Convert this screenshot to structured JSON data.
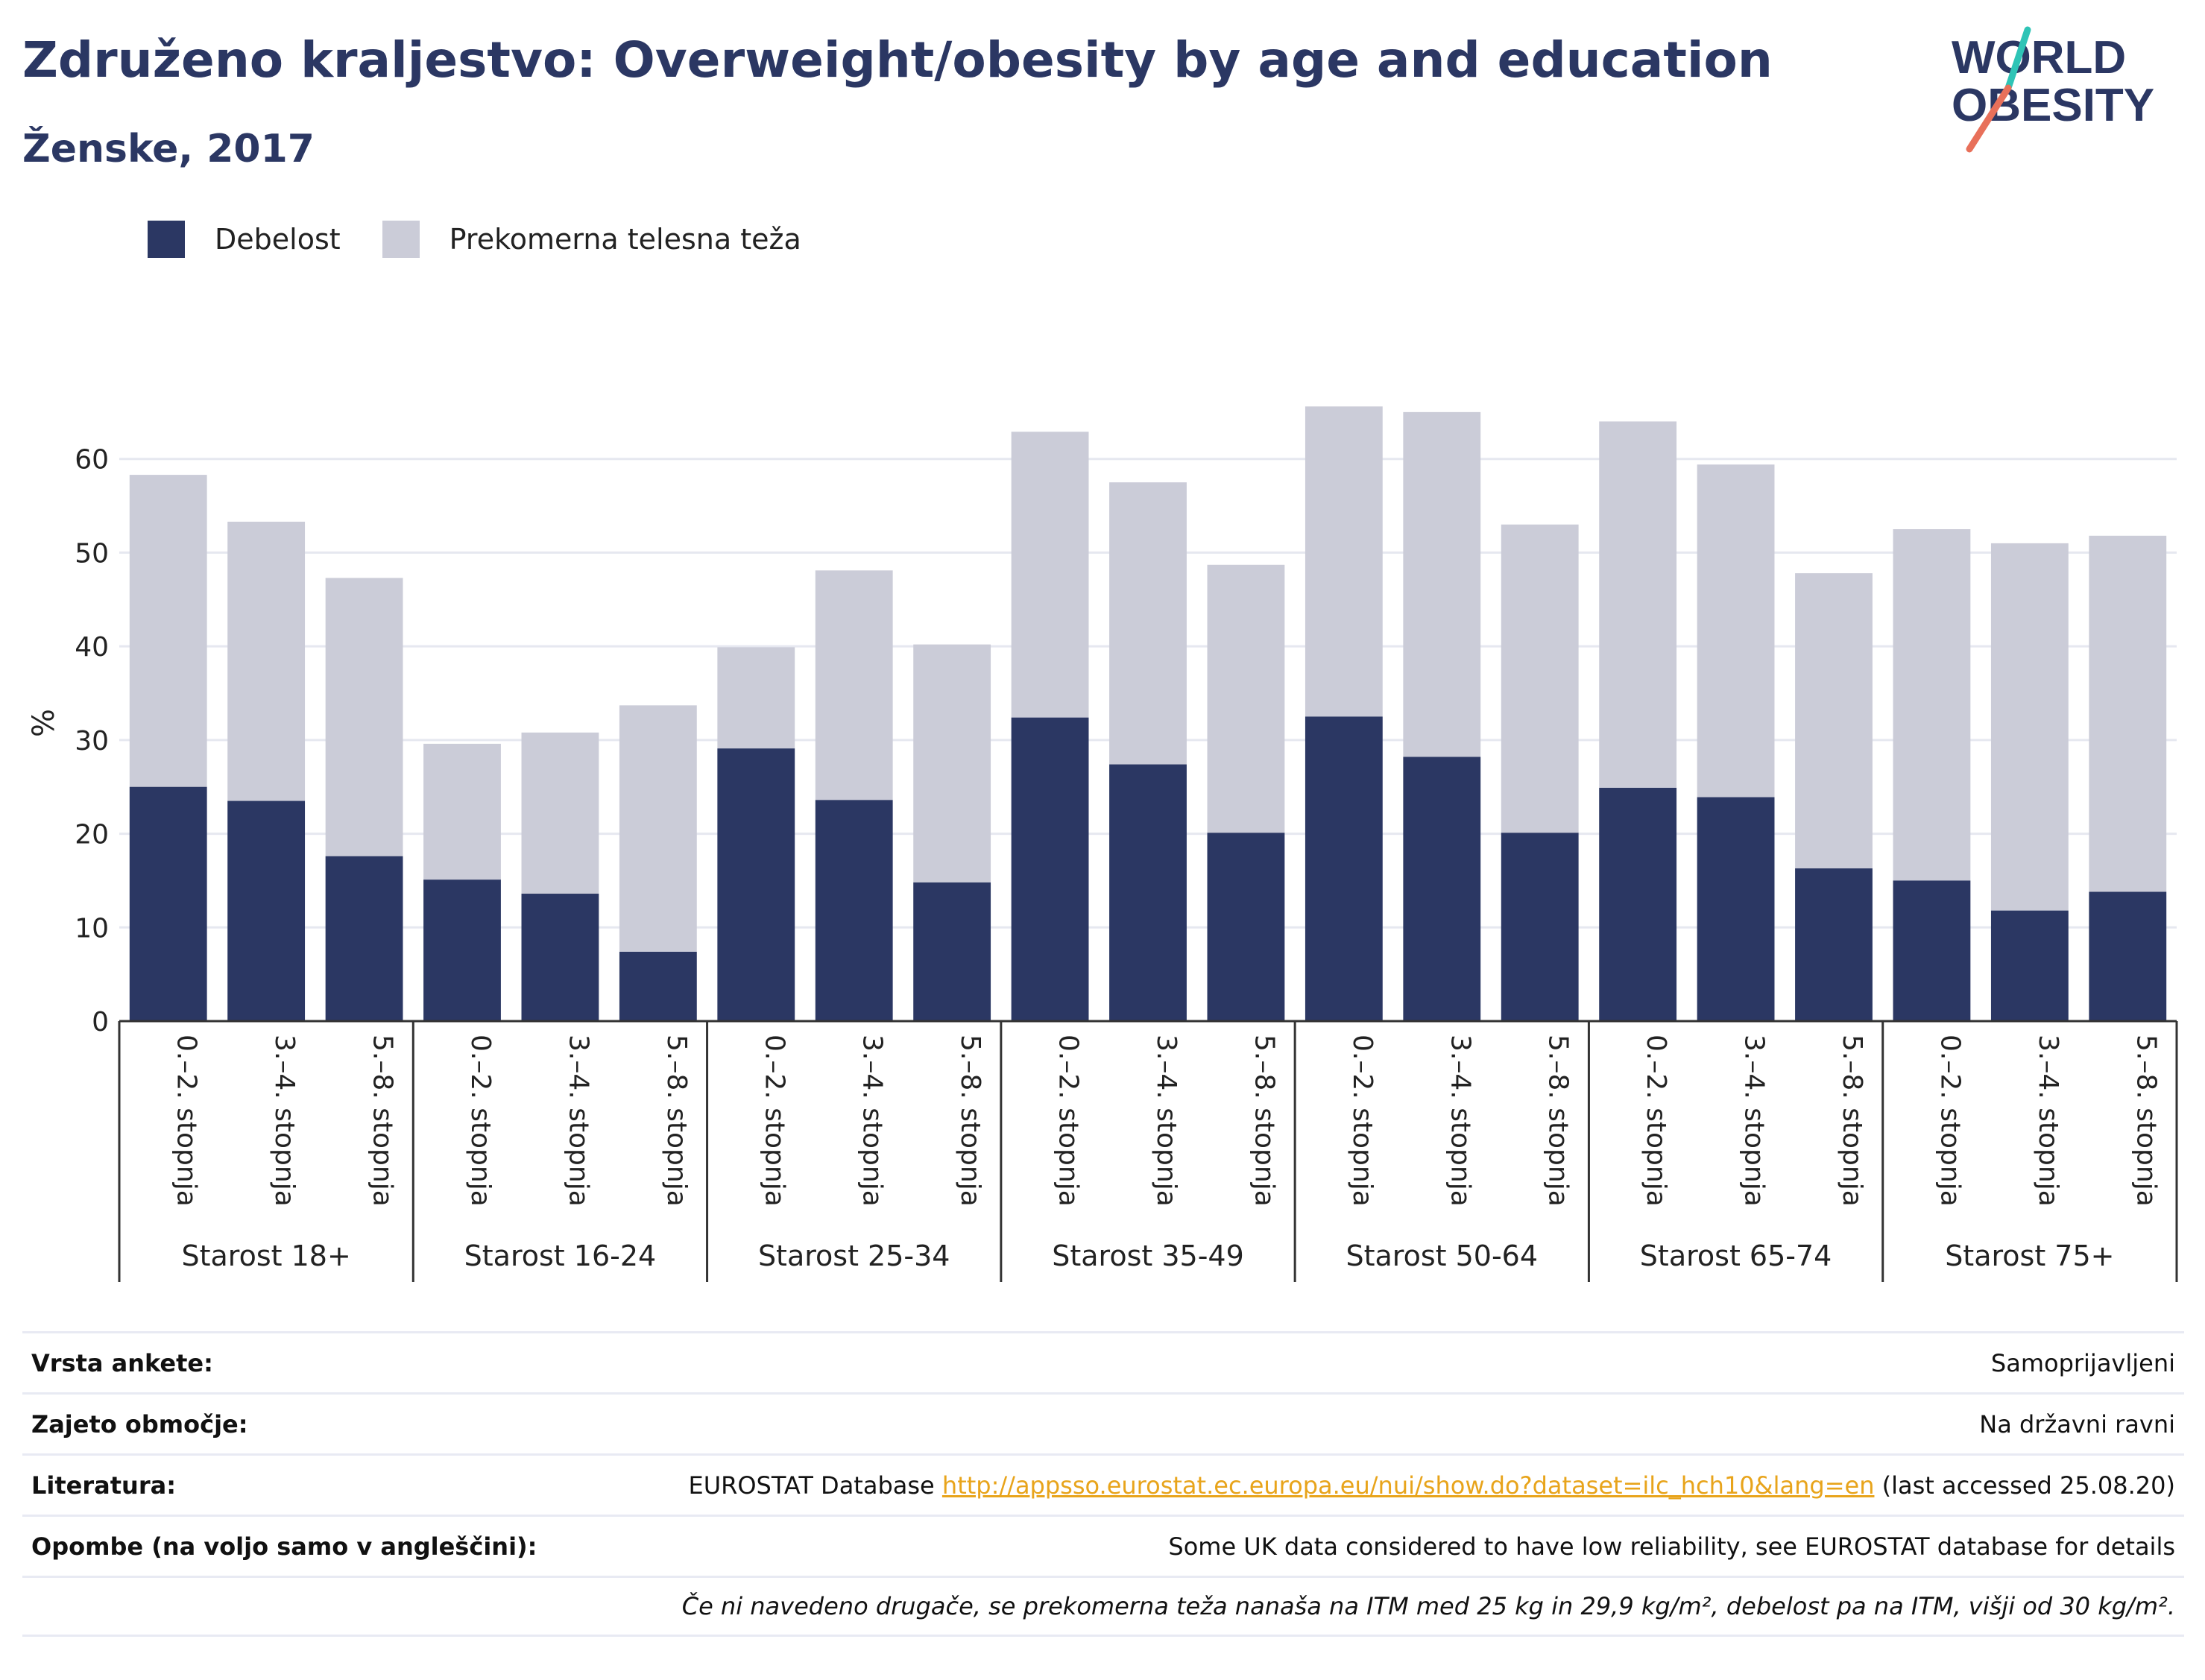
{
  "header": {
    "title": "Združeno kraljestvo: Overweight/obesity by age and education",
    "subtitle": "Ženske, 2017"
  },
  "logo": {
    "line1": "WORLD",
    "line2": "OBESITY",
    "colors": {
      "text": "#2b3763",
      "slash_teal": "#2ec4b6",
      "slash_coral": "#e8705a"
    }
  },
  "legend": [
    {
      "label": "Debelost",
      "color": "#2b3763"
    },
    {
      "label": "Prekomerna telesna teža",
      "color": "#cbccd8"
    }
  ],
  "chart_data": {
    "type": "bar",
    "stacked": true,
    "ylabel": "%",
    "ylim": [
      0,
      70
    ],
    "yticks": [
      0,
      10,
      20,
      30,
      40,
      50,
      60
    ],
    "grid": true,
    "legend_position": "top-left",
    "groups": [
      "Starost 18+",
      "Starost 16-24",
      "Starost 25-34",
      "Starost 35-49",
      "Starost 50-64",
      "Starost 65-74",
      "Starost 75+"
    ],
    "subcategories": [
      "0.–2. stopnja",
      "3.–4. stopnja",
      "5.–8. stopnja"
    ],
    "series": [
      {
        "name": "Debelost",
        "color": "#2b3763",
        "values": [
          25.0,
          23.5,
          17.6,
          15.1,
          13.6,
          7.4,
          29.1,
          23.6,
          14.8,
          32.4,
          27.4,
          20.1,
          32.5,
          28.2,
          20.1,
          24.9,
          23.9,
          16.3,
          15.0,
          11.8,
          13.8
        ]
      },
      {
        "name": "Prekomerna telesna teža",
        "color": "#cbccd8",
        "values": [
          33.3,
          29.8,
          29.7,
          14.5,
          17.2,
          26.3,
          10.8,
          24.5,
          25.4,
          30.5,
          30.1,
          28.6,
          33.1,
          36.8,
          32.9,
          39.1,
          35.5,
          31.5,
          37.5,
          39.2,
          38.0
        ]
      }
    ]
  },
  "meta": {
    "survey_type": {
      "label": "Vrsta ankete:",
      "value": "Samoprijavljeni"
    },
    "coverage": {
      "label": "Zajeto območje:",
      "value": "Na državni ravni"
    },
    "literature": {
      "label": "Literatura:",
      "prefix": "EUROSTAT Database ",
      "link": "http://appsso.eurostat.ec.europa.eu/nui/show.do?dataset=ilc_hch10&lang=en",
      "suffix": " (last accessed 25.08.20)"
    },
    "notes": {
      "label": "Opombe (na voljo samo v angleščini):",
      "value": "Some UK data considered to have low reliability, see EUROSTAT database for details"
    },
    "definition": "Če ni navedeno drugače, se prekomerna teža nanaša na ITM med 25 kg in 29,9 kg/m², debelost pa na ITM, višji od 30 kg/m²."
  }
}
